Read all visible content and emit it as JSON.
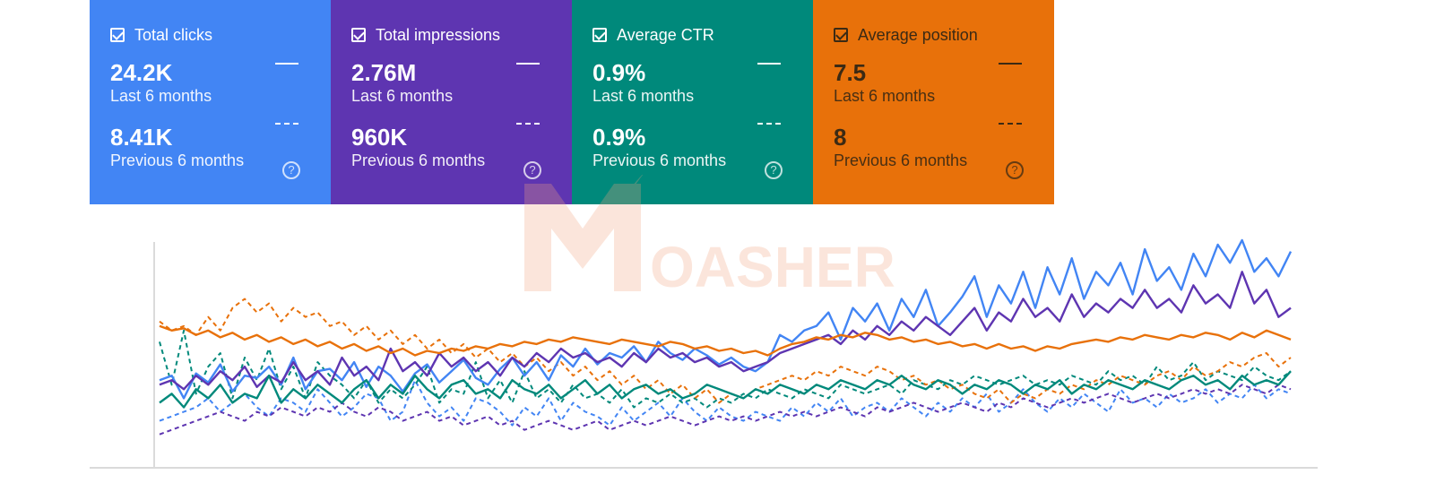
{
  "cards": [
    {
      "id": "clicks",
      "title": "Total clicks",
      "value": "24.2K",
      "period": "Last 6 months",
      "prev_value": "8.41K",
      "prev_period": "Previous 6 months",
      "color": "#4285f4",
      "text_color": "#ffffff"
    },
    {
      "id": "impressions",
      "title": "Total impressions",
      "value": "2.76M",
      "period": "Last 6 months",
      "prev_value": "960K",
      "prev_period": "Previous 6 months",
      "color": "#5e35b1",
      "text_color": "#ffffff"
    },
    {
      "id": "ctr",
      "title": "Average CTR",
      "value": "0.9%",
      "period": "Last 6 months",
      "prev_value": "0.9%",
      "prev_period": "Previous 6 months",
      "color": "#00897b",
      "text_color": "#ffffff"
    },
    {
      "id": "position",
      "title": "Average position",
      "value": "7.5",
      "period": "Last 6 months",
      "prev_value": "8",
      "prev_period": "Previous 6 months",
      "color": "#e8710a",
      "text_color": "#3b2a14"
    }
  ],
  "help_glyph": "?",
  "watermark": {
    "text": "OASHER",
    "letter": "M",
    "color": "#f4a582"
  },
  "chart_data": {
    "type": "line",
    "title": "",
    "xlabel": "",
    "ylabel": "",
    "ylim": [
      0,
      100
    ],
    "grid": false,
    "legend": "none",
    "series": [
      {
        "key": "clicks_current",
        "color": "#4285f4",
        "dashed": false,
        "values": [
          38,
          40,
          30,
          41,
          37,
          45,
          33,
          40,
          39,
          44,
          36,
          48,
          34,
          42,
          43,
          38,
          46,
          35,
          44,
          40,
          33,
          41,
          45,
          37,
          42,
          47,
          39,
          36,
          43,
          48,
          40,
          46,
          38,
          49,
          44,
          52,
          45,
          50,
          48,
          53,
          46,
          55,
          50,
          47,
          52,
          49,
          45,
          48,
          44,
          42,
          46,
          58,
          55,
          60,
          62,
          68,
          56,
          70,
          64,
          72,
          60,
          74,
          66,
          78,
          62,
          68,
          75,
          84,
          66,
          80,
          72,
          86,
          70,
          88,
          76,
          92,
          74,
          86,
          80,
          90,
          76,
          96,
          82,
          88,
          78,
          94,
          84,
          98,
          90,
          100,
          86,
          92,
          84,
          95
        ]
      },
      {
        "key": "clicks_previous",
        "color": "#4285f4",
        "dashed": true,
        "values": [
          20,
          22,
          24,
          26,
          30,
          24,
          28,
          32,
          26,
          22,
          30,
          28,
          24,
          34,
          28,
          22,
          26,
          32,
          30,
          20,
          24,
          38,
          28,
          22,
          26,
          20,
          30,
          28,
          24,
          18,
          26,
          22,
          30,
          20,
          28,
          24,
          22,
          18,
          26,
          20,
          24,
          28,
          22,
          30,
          24,
          20,
          26,
          22,
          20,
          24,
          22,
          20,
          26,
          22,
          28,
          24,
          30,
          22,
          26,
          28,
          24,
          30,
          26,
          22,
          28,
          24,
          30,
          26,
          32,
          24,
          28,
          34,
          28,
          24,
          30,
          26,
          32,
          28,
          24,
          34,
          28,
          30,
          26,
          32,
          28,
          30,
          34,
          28,
          32,
          30,
          36,
          30,
          34,
          32
        ]
      },
      {
        "key": "impressions_current",
        "color": "#5e35b1",
        "dashed": false,
        "values": [
          36,
          38,
          34,
          40,
          36,
          42,
          38,
          44,
          35,
          40,
          37,
          46,
          38,
          42,
          36,
          48,
          40,
          44,
          38,
          52,
          42,
          46,
          40,
          50,
          44,
          48,
          42,
          46,
          40,
          48,
          44,
          50,
          46,
          52,
          48,
          50,
          46,
          48,
          44,
          50,
          46,
          52,
          48,
          50,
          46,
          48,
          44,
          46,
          42,
          44,
          46,
          50,
          52,
          54,
          56,
          58,
          54,
          60,
          56,
          62,
          58,
          64,
          60,
          66,
          62,
          58,
          64,
          70,
          60,
          68,
          64,
          74,
          66,
          70,
          64,
          76,
          66,
          72,
          68,
          74,
          70,
          78,
          70,
          74,
          68,
          80,
          72,
          76,
          70,
          86,
          72,
          78,
          66,
          70
        ]
      },
      {
        "key": "impressions_previous",
        "color": "#5e35b1",
        "dashed": true,
        "values": [
          14,
          16,
          18,
          20,
          22,
          24,
          22,
          20,
          24,
          22,
          26,
          24,
          22,
          26,
          24,
          28,
          24,
          22,
          26,
          24,
          20,
          22,
          24,
          20,
          22,
          18,
          20,
          22,
          18,
          20,
          16,
          18,
          20,
          18,
          16,
          18,
          20,
          16,
          18,
          20,
          18,
          20,
          22,
          20,
          18,
          20,
          22,
          20,
          22,
          20,
          22,
          24,
          22,
          24,
          22,
          24,
          26,
          24,
          22,
          26,
          24,
          26,
          28,
          26,
          24,
          26,
          28,
          26,
          24,
          28,
          26,
          30,
          28,
          26,
          28,
          30,
          28,
          30,
          32,
          30,
          28,
          30,
          32,
          30,
          32,
          34,
          32,
          34,
          32,
          36,
          34,
          32,
          36,
          34
        ]
      },
      {
        "key": "ctr_current",
        "color": "#00897b",
        "dashed": false,
        "values": [
          28,
          32,
          26,
          34,
          30,
          36,
          28,
          32,
          30,
          40,
          28,
          34,
          30,
          36,
          32,
          28,
          34,
          38,
          30,
          36,
          32,
          40,
          34,
          30,
          36,
          38,
          32,
          34,
          30,
          38,
          34,
          32,
          36,
          30,
          34,
          38,
          32,
          36,
          30,
          34,
          36,
          32,
          34,
          30,
          32,
          36,
          34,
          32,
          30,
          34,
          32,
          36,
          34,
          32,
          36,
          34,
          38,
          36,
          34,
          38,
          36,
          40,
          36,
          34,
          38,
          36,
          32,
          36,
          34,
          38,
          36,
          32,
          36,
          34,
          38,
          32,
          36,
          34,
          38,
          36,
          34,
          38,
          36,
          34,
          38,
          40,
          36,
          38,
          34,
          40,
          36,
          38,
          36,
          42
        ]
      },
      {
        "key": "ctr_previous",
        "color": "#00897b",
        "dashed": true,
        "values": [
          55,
          36,
          60,
          32,
          44,
          50,
          30,
          48,
          38,
          52,
          34,
          44,
          30,
          46,
          40,
          36,
          30,
          38,
          28,
          34,
          30,
          36,
          44,
          28,
          34,
          32,
          46,
          30,
          38,
          28,
          42,
          30,
          34,
          28,
          36,
          30,
          32,
          28,
          34,
          26,
          30,
          28,
          32,
          28,
          30,
          26,
          30,
          28,
          32,
          30,
          34,
          32,
          30,
          34,
          32,
          30,
          36,
          34,
          32,
          34,
          36,
          32,
          38,
          36,
          34,
          38,
          36,
          40,
          38,
          36,
          38,
          40,
          36,
          38,
          36,
          40,
          38,
          36,
          42,
          38,
          40,
          36,
          44,
          38,
          40,
          46,
          38,
          42,
          40,
          38,
          44,
          40,
          38,
          42
        ]
      },
      {
        "key": "position_current",
        "color": "#e8710a",
        "dashed": false,
        "values": [
          62,
          60,
          61,
          58,
          60,
          57,
          59,
          56,
          58,
          55,
          57,
          54,
          56,
          53,
          55,
          52,
          54,
          51,
          53,
          50,
          52,
          49,
          51,
          50,
          52,
          51,
          53,
          52,
          54,
          53,
          55,
          54,
          56,
          55,
          57,
          56,
          55,
          54,
          56,
          55,
          54,
          53,
          55,
          54,
          52,
          53,
          51,
          52,
          50,
          51,
          49,
          52,
          54,
          55,
          57,
          56,
          58,
          57,
          59,
          58,
          56,
          57,
          55,
          56,
          54,
          55,
          53,
          54,
          52,
          54,
          52,
          53,
          51,
          53,
          52,
          54,
          55,
          56,
          55,
          57,
          56,
          58,
          57,
          56,
          58,
          57,
          59,
          58,
          56,
          59,
          57,
          60,
          58,
          56
        ]
      },
      {
        "key": "position_previous",
        "color": "#e8710a",
        "dashed": true,
        "values": [
          64,
          60,
          62,
          58,
          66,
          60,
          70,
          74,
          68,
          72,
          64,
          70,
          66,
          68,
          62,
          64,
          58,
          62,
          56,
          60,
          54,
          58,
          52,
          56,
          50,
          54,
          48,
          52,
          46,
          50,
          44,
          48,
          42,
          46,
          40,
          44,
          38,
          42,
          36,
          40,
          34,
          38,
          32,
          36,
          30,
          34,
          28,
          32,
          30,
          34,
          36,
          38,
          40,
          38,
          42,
          40,
          44,
          42,
          40,
          44,
          42,
          38,
          40,
          36,
          38,
          34,
          36,
          32,
          30,
          34,
          28,
          32,
          30,
          34,
          32,
          36,
          34,
          38,
          36,
          40,
          38,
          36,
          40,
          42,
          38,
          44,
          40,
          42,
          46,
          44,
          48,
          50,
          44,
          48
        ]
      }
    ]
  }
}
